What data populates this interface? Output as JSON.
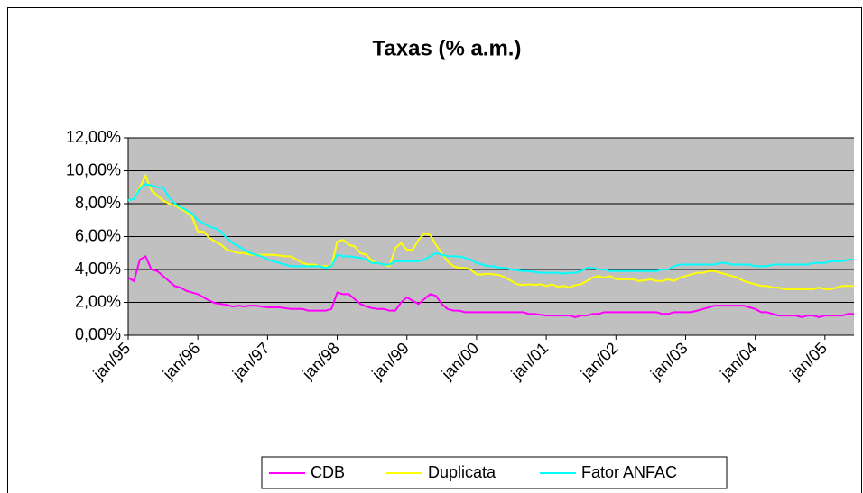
{
  "chart_data": {
    "type": "line",
    "title": "Taxas (% a.m.)",
    "categories": [
      "jan/95",
      null,
      null,
      null,
      null,
      null,
      null,
      null,
      null,
      null,
      null,
      null,
      "jan/96",
      null,
      null,
      null,
      null,
      null,
      null,
      null,
      null,
      null,
      null,
      null,
      "jan/97",
      null,
      null,
      null,
      null,
      null,
      null,
      null,
      null,
      null,
      null,
      null,
      "jan/98",
      null,
      null,
      null,
      null,
      null,
      null,
      null,
      null,
      null,
      null,
      null,
      "jan/99",
      null,
      null,
      null,
      null,
      null,
      null,
      null,
      null,
      null,
      null,
      null,
      "jan/00",
      null,
      null,
      null,
      null,
      null,
      null,
      null,
      null,
      null,
      null,
      null,
      "jan/01",
      null,
      null,
      null,
      null,
      null,
      null,
      null,
      null,
      null,
      null,
      null,
      "jan/02",
      null,
      null,
      null,
      null,
      null,
      null,
      null,
      null,
      null,
      null,
      null,
      "jan/03",
      null,
      null,
      null,
      null,
      null,
      null,
      null,
      null,
      null,
      null,
      null,
      "jan/04",
      null,
      null,
      null,
      null,
      null,
      null,
      null,
      null,
      null,
      null,
      null,
      "jan/05",
      null,
      null,
      null,
      null,
      null
    ],
    "series": [
      {
        "name": "CDB",
        "color": "#ff00ff",
        "values": [
          3.5,
          3.3,
          4.6,
          4.8,
          4.0,
          3.9,
          3.6,
          3.3,
          3.0,
          2.9,
          2.7,
          2.6,
          2.5,
          2.3,
          2.1,
          1.95,
          1.9,
          1.85,
          1.75,
          1.8,
          1.75,
          1.8,
          1.8,
          1.75,
          1.7,
          1.7,
          1.7,
          1.65,
          1.6,
          1.6,
          1.6,
          1.5,
          1.5,
          1.5,
          1.5,
          1.6,
          2.6,
          2.5,
          2.5,
          2.2,
          1.9,
          1.75,
          1.65,
          1.6,
          1.6,
          1.5,
          1.5,
          2.0,
          2.3,
          2.1,
          1.9,
          2.2,
          2.5,
          2.4,
          1.9,
          1.6,
          1.5,
          1.5,
          1.4,
          1.4,
          1.4,
          1.4,
          1.4,
          1.4,
          1.4,
          1.4,
          1.4,
          1.4,
          1.4,
          1.3,
          1.3,
          1.25,
          1.2,
          1.2,
          1.2,
          1.2,
          1.2,
          1.1,
          1.2,
          1.2,
          1.3,
          1.3,
          1.4,
          1.4,
          1.4,
          1.4,
          1.4,
          1.4,
          1.4,
          1.4,
          1.4,
          1.4,
          1.3,
          1.3,
          1.4,
          1.4,
          1.4,
          1.4,
          1.5,
          1.6,
          1.7,
          1.8,
          1.8,
          1.8,
          1.8,
          1.8,
          1.8,
          1.7,
          1.6,
          1.4,
          1.4,
          1.3,
          1.2,
          1.2,
          1.2,
          1.2,
          1.1,
          1.2,
          1.2,
          1.1,
          1.2,
          1.2,
          1.2,
          1.2,
          1.3,
          1.3
        ]
      },
      {
        "name": "Duplicata",
        "color": "#ffff00",
        "values": [
          8.2,
          8.3,
          9.0,
          9.7,
          8.8,
          8.5,
          8.2,
          8.0,
          7.9,
          7.7,
          7.5,
          7.2,
          6.3,
          6.3,
          5.9,
          5.7,
          5.5,
          5.2,
          5.1,
          5.0,
          5.0,
          4.9,
          4.9,
          4.9,
          4.9,
          4.9,
          4.85,
          4.8,
          4.8,
          4.6,
          4.4,
          4.3,
          4.3,
          4.2,
          4.2,
          4.2,
          5.7,
          5.8,
          5.5,
          5.4,
          5.0,
          4.9,
          4.5,
          4.4,
          4.3,
          4.2,
          5.3,
          5.6,
          5.2,
          5.2,
          5.8,
          6.2,
          6.1,
          5.5,
          5.0,
          4.5,
          4.2,
          4.1,
          4.1,
          4.0,
          3.7,
          3.7,
          3.75,
          3.7,
          3.65,
          3.5,
          3.3,
          3.1,
          3.05,
          3.1,
          3.05,
          3.1,
          3.0,
          3.1,
          2.95,
          3.0,
          2.9,
          3.05,
          3.1,
          3.3,
          3.5,
          3.6,
          3.5,
          3.6,
          3.4,
          3.4,
          3.4,
          3.4,
          3.3,
          3.35,
          3.4,
          3.3,
          3.3,
          3.4,
          3.3,
          3.5,
          3.6,
          3.7,
          3.8,
          3.8,
          3.9,
          3.9,
          3.8,
          3.7,
          3.6,
          3.5,
          3.3,
          3.2,
          3.1,
          3.0,
          3.0,
          2.9,
          2.9,
          2.8,
          2.8,
          2.8,
          2.8,
          2.8,
          2.8,
          2.9,
          2.8,
          2.8,
          2.9,
          3.0,
          3.0,
          3.0
        ]
      },
      {
        "name": "Fator ANFAC",
        "color": "#00ffff",
        "values": [
          8.2,
          8.3,
          8.9,
          9.2,
          9.1,
          9.0,
          9.0,
          8.4,
          8.0,
          7.8,
          7.6,
          7.4,
          7.0,
          6.8,
          6.6,
          6.5,
          6.3,
          5.9,
          5.6,
          5.4,
          5.2,
          5.0,
          4.9,
          4.8,
          4.6,
          4.5,
          4.4,
          4.3,
          4.2,
          4.2,
          4.2,
          4.2,
          4.2,
          4.2,
          4.1,
          4.2,
          4.9,
          4.8,
          4.8,
          4.75,
          4.7,
          4.6,
          4.4,
          4.4,
          4.3,
          4.3,
          4.5,
          4.5,
          4.5,
          4.5,
          4.5,
          4.6,
          4.8,
          5.0,
          4.9,
          4.8,
          4.8,
          4.8,
          4.7,
          4.6,
          4.4,
          4.3,
          4.2,
          4.2,
          4.1,
          4.1,
          4.0,
          3.95,
          3.9,
          3.9,
          3.85,
          3.8,
          3.8,
          3.8,
          3.8,
          3.75,
          3.8,
          3.8,
          3.9,
          4.1,
          4.1,
          4.0,
          4.0,
          3.9,
          3.9,
          3.9,
          3.9,
          3.9,
          3.9,
          3.9,
          3.9,
          3.9,
          4.0,
          4.0,
          4.2,
          4.3,
          4.3,
          4.3,
          4.3,
          4.3,
          4.3,
          4.3,
          4.4,
          4.4,
          4.3,
          4.3,
          4.3,
          4.3,
          4.2,
          4.2,
          4.2,
          4.3,
          4.3,
          4.3,
          4.3,
          4.3,
          4.3,
          4.3,
          4.4,
          4.4,
          4.4,
          4.5,
          4.5,
          4.5,
          4.6,
          4.6
        ]
      }
    ],
    "ylim": [
      0,
      12
    ],
    "yticks": [
      {
        "value": 0,
        "label": "0,00%"
      },
      {
        "value": 2,
        "label": "2,00%"
      },
      {
        "value": 4,
        "label": "4,00%"
      },
      {
        "value": 6,
        "label": "6,00%"
      },
      {
        "value": 8,
        "label": "8,00%"
      },
      {
        "value": 10,
        "label": "10,00%"
      },
      {
        "value": 12,
        "label": "12,00%"
      }
    ],
    "grid": true,
    "plot_background": "#c0c0c0",
    "legend": "bottom"
  }
}
